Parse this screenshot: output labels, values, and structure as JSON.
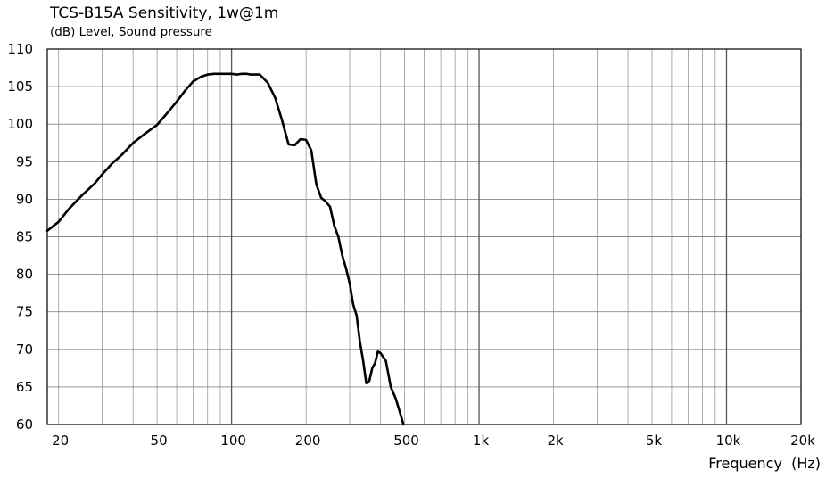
{
  "chart_data": {
    "type": "line",
    "title": "TCS-B15A Sensitivity, 1w@1m",
    "ylabel": "(dB) Level, Sound pressure",
    "xlabel": "Frequency  (Hz)",
    "xscale": "log",
    "xlim": [
      18,
      20000
    ],
    "ylim": [
      60,
      110
    ],
    "grid": true,
    "x_ticks": [
      {
        "value": 20,
        "label": "20"
      },
      {
        "value": 50,
        "label": "50"
      },
      {
        "value": 100,
        "label": "100"
      },
      {
        "value": 200,
        "label": "200"
      },
      {
        "value": 500,
        "label": "500"
      },
      {
        "value": 1000,
        "label": "1k"
      },
      {
        "value": 2000,
        "label": "2k"
      },
      {
        "value": 5000,
        "label": "5k"
      },
      {
        "value": 10000,
        "label": "10k"
      },
      {
        "value": 20000,
        "label": "20k"
      }
    ],
    "y_ticks": [
      60,
      65,
      70,
      75,
      80,
      85,
      90,
      95,
      100,
      105,
      110
    ],
    "series": [
      {
        "color": "#000000",
        "x": [
          18,
          20,
          22,
          25,
          28,
          30,
          33,
          36,
          40,
          45,
          50,
          55,
          60,
          65,
          70,
          75,
          80,
          85,
          90,
          95,
          100,
          105,
          110,
          115,
          120,
          130,
          140,
          150,
          160,
          170,
          180,
          190,
          200,
          210,
          220,
          230,
          240,
          250,
          260,
          270,
          280,
          290,
          300,
          310,
          320,
          330,
          340,
          350,
          360,
          370,
          380,
          390,
          400,
          420,
          440,
          460,
          480,
          495
        ],
        "y": [
          85.8,
          87.0,
          88.7,
          90.6,
          92.1,
          93.3,
          94.8,
          95.9,
          97.5,
          98.8,
          99.9,
          101.5,
          103.0,
          104.5,
          105.7,
          106.3,
          106.6,
          106.7,
          106.7,
          106.7,
          106.7,
          106.6,
          106.7,
          106.7,
          106.6,
          106.6,
          105.5,
          103.5,
          100.5,
          97.3,
          97.2,
          98.0,
          97.9,
          96.5,
          92.0,
          90.2,
          89.7,
          89.0,
          86.5,
          85.0,
          82.5,
          80.8,
          78.8,
          76.0,
          74.5,
          71.0,
          68.5,
          65.5,
          65.8,
          67.5,
          68.2,
          69.7,
          69.5,
          68.5,
          65.0,
          63.5,
          61.5,
          60.0
        ]
      }
    ]
  }
}
